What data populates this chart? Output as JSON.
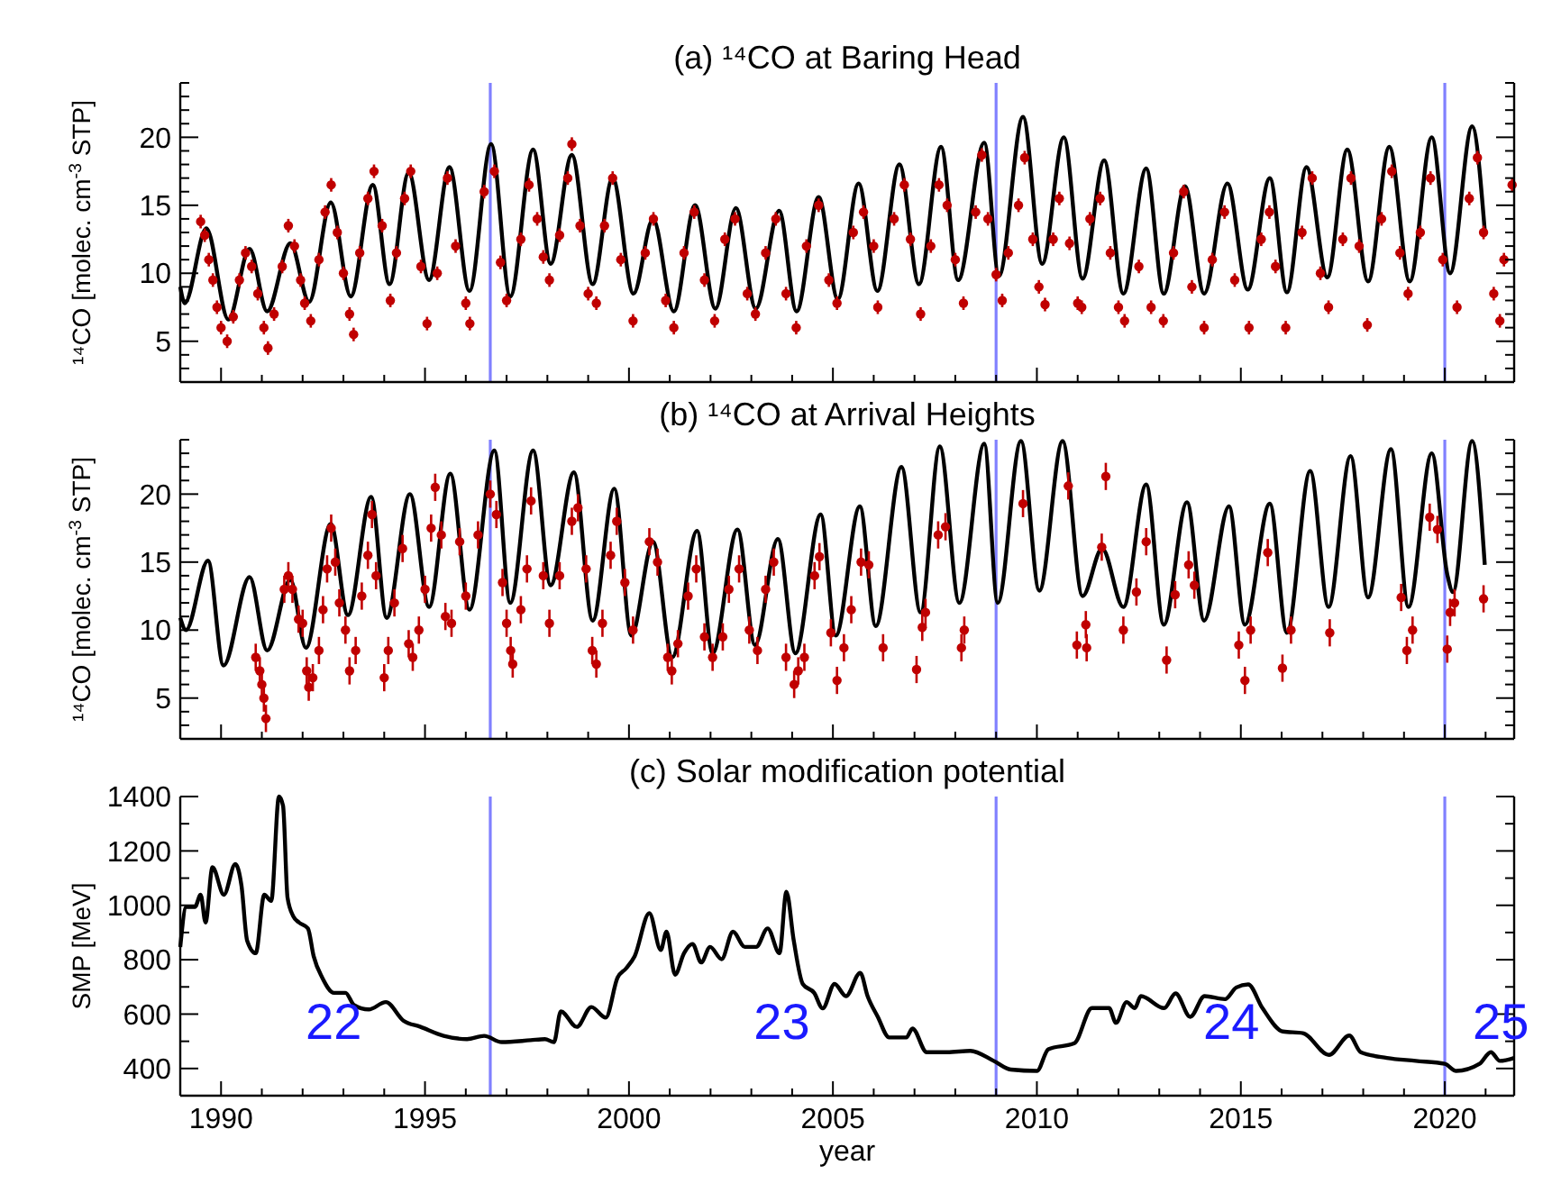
{
  "chart_data": [
    {
      "type": "scatter",
      "title": "(a) ¹⁴CO at Baring Head",
      "ylabel": "¹⁴CO [molec. cm$^{-3}$ STP]",
      "xlim": [
        1989,
        2021.7
      ],
      "ylim": [
        2,
        24
      ],
      "xticks": [
        {
          "value": 1989,
          "label": null
        },
        1990,
        {
          "value": 1991,
          "label": null
        },
        {
          "value": 1992,
          "label": null
        },
        {
          "value": 1993,
          "label": null
        },
        {
          "value": 1994,
          "label": null
        },
        1995,
        {
          "value": 1996,
          "label": null
        },
        {
          "value": 1997,
          "label": null
        },
        {
          "value": 1998,
          "label": null
        },
        {
          "value": 1999,
          "label": null
        },
        2000,
        {
          "value": 2001,
          "label": null
        },
        {
          "value": 2002,
          "label": null
        },
        {
          "value": 2003,
          "label": null
        },
        {
          "value": 2004,
          "label": null
        },
        2005,
        {
          "value": 2006,
          "label": null
        },
        {
          "value": 2007,
          "label": null
        },
        {
          "value": 2008,
          "label": null
        },
        {
          "value": 2009,
          "label": null
        },
        2010,
        {
          "value": 2011,
          "label": null
        },
        {
          "value": 2012,
          "label": null
        },
        {
          "value": 2013,
          "label": null
        },
        {
          "value": 2014,
          "label": null
        },
        2015,
        {
          "value": 2016,
          "label": null
        },
        {
          "value": 2017,
          "label": null
        },
        {
          "value": 2018,
          "label": null
        },
        {
          "value": 2019,
          "label": null
        },
        2020,
        {
          "value": 2021,
          "label": null
        }
      ],
      "yticks": [
        {
          "value": 3,
          "label": null
        },
        {
          "value": 4,
          "label": null
        },
        5,
        {
          "value": 6,
          "label": null
        },
        {
          "value": 7,
          "label": null
        },
        {
          "value": 8,
          "label": null
        },
        {
          "value": 9,
          "label": null
        },
        10,
        {
          "value": 11,
          "label": null
        },
        {
          "value": 12,
          "label": null
        },
        {
          "value": 13,
          "label": null
        },
        {
          "value": 14,
          "label": null
        },
        15,
        {
          "value": 16,
          "label": null
        },
        {
          "value": 17,
          "label": null
        },
        {
          "value": 18,
          "label": null
        },
        {
          "value": 19,
          "label": null
        },
        20,
        {
          "value": 21,
          "label": null
        },
        {
          "value": 22,
          "label": null
        },
        {
          "value": 23,
          "label": null
        },
        {
          "value": 24,
          "label": null
        }
      ],
      "tick_labels": "y",
      "line_style": "solid",
      "grid": false,
      "ref_lines": [
        {
          "axis": "x",
          "value": 1996.6,
          "color": "#8080ff"
        },
        {
          "axis": "x",
          "value": 2009.0,
          "color": "#8080ff"
        },
        {
          "axis": "x",
          "value": 2020.0,
          "color": "#8080ff"
        }
      ],
      "series": [
        {
          "marker": "circle",
          "color": "#c00000",
          "x": [
            1989.5,
            1989.6,
            1989.7,
            1989.8,
            1989.9,
            1990.0,
            1990.15,
            1990.3,
            1990.45,
            1990.6,
            1990.75,
            1990.9,
            1991.05,
            1991.15,
            1991.3,
            1991.5,
            1991.65,
            1991.8,
            1991.95,
            1992.05,
            1992.2,
            1992.4,
            1992.55,
            1992.7,
            1992.85,
            1993.0,
            1993.15,
            1993.25,
            1993.4,
            1993.6,
            1993.75,
            1993.95,
            1994.15,
            1994.3,
            1994.5,
            1994.65,
            1994.9,
            1995.05,
            1995.3,
            1995.55,
            1995.75,
            1996.0,
            1996.1,
            1996.45,
            1996.7,
            1996.85,
            1997.0,
            1997.35,
            1997.55,
            1997.75,
            1997.9,
            1998.05,
            1998.3,
            1998.5,
            1998.6,
            1998.8,
            1999.0,
            1999.2,
            1999.4,
            1999.6,
            1999.8,
            2000.1,
            2000.4,
            2000.6,
            2000.9,
            2001.1,
            2001.35,
            2001.6,
            2001.85,
            2002.1,
            2002.35,
            2002.6,
            2002.9,
            2003.1,
            2003.35,
            2003.6,
            2003.85,
            2004.1,
            2004.35,
            2004.65,
            2004.9,
            2005.1,
            2005.5,
            2005.75,
            2006.0,
            2006.1,
            2006.5,
            2006.75,
            2006.9,
            2007.15,
            2007.4,
            2007.6,
            2007.8,
            2008.0,
            2008.2,
            2008.5,
            2008.65,
            2008.8,
            2009.0,
            2009.15,
            2009.3,
            2009.55,
            2009.7,
            2009.9,
            2010.05,
            2010.2,
            2010.4,
            2010.55,
            2010.8,
            2011.0,
            2011.1,
            2011.3,
            2011.55,
            2011.8,
            2012.0,
            2012.15,
            2012.5,
            2012.8,
            2013.1,
            2013.35,
            2013.6,
            2013.8,
            2014.1,
            2014.3,
            2014.6,
            2014.85,
            2015.2,
            2015.5,
            2015.7,
            2015.85,
            2016.1,
            2016.5,
            2016.75,
            2016.95,
            2017.15,
            2017.5,
            2017.7,
            2017.9,
            2018.1,
            2018.45,
            2018.7,
            2018.9,
            2019.1,
            2019.4,
            2019.65,
            2019.95,
            2020.3,
            2020.6,
            2020.8,
            2020.95,
            2021.2,
            2021.35,
            2021.45,
            2021.65
          ],
          "values": [
            13.8,
            12.8,
            11,
            9.5,
            7.5,
            6.0,
            5.0,
            6.8,
            9.5,
            11.5,
            10.5,
            8.5,
            6.0,
            4.5,
            7.0,
            10.5,
            13.5,
            12.0,
            9.5,
            7.8,
            6.5,
            11.0,
            14.5,
            16.5,
            13.0,
            10.0,
            7.0,
            5.5,
            11.5,
            15.5,
            17.5,
            13.5,
            8.0,
            11.5,
            15.5,
            17.5,
            10.5,
            6.3,
            10.0,
            17.0,
            12.0,
            7.8,
            6.3,
            16.0,
            17.5,
            10.8,
            8.0,
            12.5,
            16.5,
            14.0,
            11.2,
            9.5,
            12.8,
            17.0,
            19.5,
            13.5,
            8.5,
            7.8,
            13.5,
            17.0,
            11.0,
            6.5,
            11.5,
            14.0,
            8.0,
            6.0,
            11.5,
            14.5,
            9.5,
            6.5,
            12.5,
            14.0,
            8.5,
            7.0,
            11.5,
            14.0,
            8.5,
            6.0,
            12.0,
            15.0,
            9.5,
            7.8,
            13.0,
            14.5,
            12,
            7.5,
            14.0,
            16.5,
            12.5,
            7.0,
            12.0,
            16.5,
            15.0,
            11,
            7.8,
            14.5,
            18.7,
            14.0,
            9.9,
            8.0,
            11.5,
            15.0,
            18.5,
            12.5,
            9.0,
            7.7,
            12.5,
            15.5,
            12.2,
            7.8,
            7.5,
            14.0,
            15.5,
            11.5,
            7.5,
            6.5,
            10.5,
            7.5,
            6.5,
            11.5,
            16.0,
            9.0,
            6.0,
            11.0,
            14.5,
            9.5,
            6.0,
            12.5,
            14.5,
            10.5,
            6.0,
            13.0,
            17.0,
            10.0,
            7.5,
            12.5,
            17.0,
            12.0,
            6.2,
            14.0,
            17.5,
            11.5,
            8.5,
            13.0,
            17.0,
            11.0,
            7.5,
            15.5,
            18.5,
            13.0,
            8.5,
            6.5,
            11.0,
            16.5
          ],
          "errors": [
            0.5,
            0.5,
            0.5,
            0.5,
            0.5,
            0.5,
            0.5,
            0.5,
            0.5,
            0.5,
            0.5,
            0.5,
            0.5,
            0.5,
            0.5,
            0.5,
            0.5,
            0.5,
            0.5,
            0.5,
            0.5,
            0.5,
            0.5,
            0.5,
            0.5,
            0.5,
            0.5,
            0.5,
            0.5,
            0.5,
            0.5,
            0.5,
            0.5,
            0.5,
            0.5,
            0.5,
            0.5,
            0.5,
            0.5,
            0.5,
            0.5,
            0.5,
            0.5,
            0.5,
            0.5,
            0.5,
            0.5,
            0.5,
            0.5,
            0.5,
            0.5,
            0.5,
            0.5,
            0.5,
            0.5,
            0.5,
            0.5,
            0.5,
            0.5,
            0.5,
            0.5,
            0.5,
            0.5,
            0.5,
            0.5,
            0.5,
            0.5,
            0.5,
            0.5,
            0.5,
            0.5,
            0.5,
            0.5,
            0.5,
            0.5,
            0.5,
            0.5,
            0.5,
            0.5,
            0.5,
            0.5,
            0.5,
            0.5,
            0.5,
            0.5,
            0.5,
            0.5,
            0.5,
            0.5,
            0.5,
            0.5,
            0.5,
            0.5,
            0.5,
            0.5,
            0.5,
            0.5,
            0.5,
            0.5,
            0.5,
            0.5,
            0.5,
            0.5,
            0.5,
            0.5,
            0.5,
            0.5,
            0.5,
            0.5,
            0.5,
            0.5,
            0.5,
            0.5,
            0.5,
            0.5,
            0.5,
            0.5,
            0.5,
            0.5,
            0.5,
            0.5,
            0.5,
            0.5,
            0.5,
            0.5,
            0.5,
            0.5,
            0.5,
            0.5,
            0.5,
            0.5,
            0.5,
            0.5,
            0.5,
            0.5,
            0.5,
            0.5,
            0.5,
            0.5,
            0.5,
            0.5,
            0.5,
            0.5,
            0.5,
            0.5,
            0.5,
            0.5,
            0.5,
            0.5,
            0.5,
            0.5,
            0.5,
            0.5,
            0.5
          ]
        },
        {
          "type": "line",
          "color": "#000000",
          "x": [
            1989.0,
            1989.11,
            1989.64,
            1990.18,
            1990.7,
            1991.13,
            1991.7,
            1992.16,
            1992.69,
            1993.18,
            1993.72,
            1994.13,
            1994.6,
            1995.1,
            1995.6,
            1996.09,
            1996.62,
            1997.09,
            1997.65,
            1998.08,
            1998.6,
            1999.11,
            1999.6,
            2000.11,
            2000.59,
            2001.1,
            2001.62,
            2002.12,
            2002.62,
            2003.11,
            2003.68,
            2004.11,
            2004.65,
            2005.12,
            2005.63,
            2006.09,
            2006.63,
            2007.11,
            2007.65,
            2008.07,
            2008.71,
            2009.07,
            2009.66,
            2010.13,
            2010.66,
            2011.12,
            2011.65,
            2012.12,
            2012.68,
            2013.11,
            2013.63,
            2014.1,
            2014.67,
            2015.17,
            2015.71,
            2016.13,
            2016.61,
            2017.12,
            2017.61,
            2018.12,
            2018.64,
            2019.14,
            2019.68,
            2020.13,
            2020.67,
            2020.98
          ],
          "values": [
            9.0,
            7.8,
            13.3,
            6.6,
            11.8,
            7.2,
            12.2,
            7.9,
            15.2,
            8.3,
            16.5,
            9.2,
            17.4,
            9.5,
            17.8,
            8.7,
            19.5,
            8.3,
            19.1,
            10.7,
            18.7,
            9.2,
            17.0,
            8.5,
            14.0,
            7.2,
            15.0,
            7.4,
            14.8,
            7.4,
            14.6,
            7.2,
            15.6,
            8.1,
            16.6,
            8.7,
            18.0,
            9.2,
            19.3,
            9.5,
            19.6,
            9.8,
            21.5,
            10.7,
            20.0,
            9.6,
            18.3,
            8.5,
            17.7,
            8.5,
            16.4,
            8.5,
            16.6,
            8.8,
            17.0,
            8.6,
            17.8,
            9.7,
            19.1,
            9.4,
            19.3,
            9.4,
            20.0,
            10.0,
            20.8,
            13.1
          ]
        }
      ]
    },
    {
      "type": "scatter",
      "title": "(b) ¹⁴CO at Arrival Heights",
      "ylabel": "¹⁴CO [molec. cm$^{-3}$ STP]",
      "xlim": [
        1989,
        2021.7
      ],
      "ylim": [
        2,
        24
      ],
      "xticks": [
        {
          "value": 1989,
          "label": null
        },
        1990,
        {
          "value": 1991,
          "label": null
        },
        {
          "value": 1992,
          "label": null
        },
        {
          "value": 1993,
          "label": null
        },
        {
          "value": 1994,
          "label": null
        },
        1995,
        {
          "value": 1996,
          "label": null
        },
        {
          "value": 1997,
          "label": null
        },
        {
          "value": 1998,
          "label": null
        },
        {
          "value": 1999,
          "label": null
        },
        2000,
        {
          "value": 2001,
          "label": null
        },
        {
          "value": 2002,
          "label": null
        },
        {
          "value": 2003,
          "label": null
        },
        {
          "value": 2004,
          "label": null
        },
        2005,
        {
          "value": 2006,
          "label": null
        },
        {
          "value": 2007,
          "label": null
        },
        {
          "value": 2008,
          "label": null
        },
        {
          "value": 2009,
          "label": null
        },
        2010,
        {
          "value": 2011,
          "label": null
        },
        {
          "value": 2012,
          "label": null
        },
        {
          "value": 2013,
          "label": null
        },
        {
          "value": 2014,
          "label": null
        },
        2015,
        {
          "value": 2016,
          "label": null
        },
        {
          "value": 2017,
          "label": null
        },
        {
          "value": 2018,
          "label": null
        },
        {
          "value": 2019,
          "label": null
        },
        2020,
        {
          "value": 2021,
          "label": null
        }
      ],
      "yticks": [
        {
          "value": 3,
          "label": null
        },
        {
          "value": 4,
          "label": null
        },
        5,
        {
          "value": 6,
          "label": null
        },
        {
          "value": 7,
          "label": null
        },
        {
          "value": 8,
          "label": null
        },
        {
          "value": 9,
          "label": null
        },
        10,
        {
          "value": 11,
          "label": null
        },
        {
          "value": 12,
          "label": null
        },
        {
          "value": 13,
          "label": null
        },
        {
          "value": 14,
          "label": null
        },
        15,
        {
          "value": 16,
          "label": null
        },
        {
          "value": 17,
          "label": null
        },
        {
          "value": 18,
          "label": null
        },
        {
          "value": 19,
          "label": null
        },
        20,
        {
          "value": 21,
          "label": null
        },
        {
          "value": 22,
          "label": null
        },
        {
          "value": 23,
          "label": null
        },
        {
          "value": 24,
          "label": null
        }
      ],
      "tick_labels": "y",
      "line_style": "solid",
      "grid": false,
      "ref_lines": [
        {
          "axis": "x",
          "value": 1996.6,
          "color": "#8080ff"
        },
        {
          "axis": "x",
          "value": 2009.0,
          "color": "#8080ff"
        },
        {
          "axis": "x",
          "value": 2020.0,
          "color": "#8080ff"
        }
      ],
      "series": [
        {
          "marker": "circle",
          "color": "#c00000",
          "x": [
            1990.85,
            1990.95,
            1991.0,
            1991.05,
            1991.1,
            1991.55,
            1991.65,
            1991.75,
            1991.9,
            1992.0,
            1992.1,
            1992.15,
            1992.25,
            1992.4,
            1992.5,
            1992.6,
            1992.7,
            1992.8,
            1992.9,
            1993.05,
            1993.15,
            1993.3,
            1993.45,
            1993.6,
            1993.7,
            1993.8,
            1994.0,
            1994.1,
            1994.25,
            1994.45,
            1994.6,
            1994.7,
            1994.85,
            1995.0,
            1995.15,
            1995.25,
            1995.4,
            1995.5,
            1995.65,
            1995.85,
            1996.0,
            1996.3,
            1996.6,
            1996.75,
            1996.9,
            1997.0,
            1997.1,
            1997.15,
            1997.35,
            1997.5,
            1997.6,
            1997.9,
            1998.05,
            1998.3,
            1998.6,
            1998.75,
            1998.95,
            1999.1,
            1999.2,
            1999.35,
            1999.55,
            1999.7,
            1999.9,
            2000.1,
            2000.5,
            2000.7,
            2000.95,
            2001.05,
            2001.2,
            2001.45,
            2001.65,
            2001.85,
            2002.05,
            2002.3,
            2002.45,
            2002.7,
            2002.95,
            2003.15,
            2003.35,
            2003.55,
            2003.85,
            2004.05,
            2004.15,
            2004.3,
            2004.55,
            2004.67,
            2004.95,
            2005.1,
            2005.27,
            2005.45,
            2005.69,
            2005.88,
            2006.23,
            2007.05,
            2007.19,
            2007.27,
            2007.58,
            2007.76,
            2008.15,
            2008.22,
            2009.66,
            2010.77,
            2010.98,
            2011.2,
            2011.22,
            2011.59,
            2011.69,
            2012.12,
            2012.44,
            2012.68,
            2013.18,
            2013.39,
            2013.72,
            2013.86,
            2014.95,
            2015.1,
            2015.24,
            2015.66,
            2016.02,
            2016.23,
            2017.18,
            2018.93,
            2019.07,
            2019.21,
            2019.63,
            2019.82,
            2020.06,
            2020.13,
            2020.24,
            2020.95
          ],
          "values": [
            8.0,
            7.0,
            6.0,
            5.0,
            3.5,
            13,
            14,
            13,
            10.8,
            10.5,
            7,
            5.8,
            6.5,
            8.5,
            11.5,
            14.5,
            17.5,
            15,
            12,
            10,
            7,
            8.5,
            12.5,
            15.5,
            18.5,
            14,
            6.5,
            8.5,
            12,
            16,
            9,
            8,
            10,
            13,
            17.5,
            20.5,
            17,
            11,
            10.5,
            16.5,
            12.5,
            17,
            20,
            18.5,
            13.5,
            10.5,
            8.5,
            7.5,
            11.5,
            14.5,
            19.5,
            14,
            10.5,
            14,
            18,
            19,
            14.5,
            8.5,
            7.5,
            10.5,
            15.5,
            18,
            13.5,
            10,
            16.5,
            15,
            8,
            7,
            9,
            12.5,
            14.5,
            9.5,
            8,
            9.5,
            13,
            14.5,
            10,
            8.5,
            13,
            15,
            8,
            6,
            7,
            8,
            14,
            15.4,
            9.8,
            6.3,
            8.7,
            11.5,
            15,
            14.8,
            8.7,
            7.1,
            10.2,
            11.3,
            17,
            17.6,
            8.7,
            10,
            19.3,
            20.6,
            8.9,
            10.4,
            8.7,
            16.1,
            21.3,
            10,
            12.8,
            16.5,
            7.8,
            12.6,
            14.8,
            13.3,
            8.9,
            6.3,
            10,
            15.7,
            7.2,
            10,
            9.8,
            12.4,
            8.5,
            10,
            18.3,
            17.4,
            8.6,
            11.3,
            12,
            12.3
          ],
          "errors": [
            1,
            1,
            1,
            1,
            1,
            1,
            1,
            1,
            1,
            1,
            1,
            1,
            1,
            1,
            1,
            1,
            1,
            1,
            1,
            1,
            1,
            1,
            1,
            1,
            1,
            1,
            1,
            1,
            1,
            1,
            1,
            1,
            1,
            1,
            1,
            1,
            1,
            1,
            1,
            1,
            1,
            1,
            1,
            1,
            1,
            1,
            1,
            1,
            1,
            1,
            1,
            1,
            1,
            1,
            1,
            1,
            1,
            1,
            1,
            1,
            1,
            1,
            1,
            1,
            1,
            1,
            1,
            1,
            1,
            1,
            1,
            1,
            1,
            1,
            1,
            1,
            1,
            1,
            1,
            1,
            1,
            1,
            1,
            1,
            1,
            1,
            1,
            1,
            1,
            1,
            1,
            1,
            1,
            1,
            1,
            1,
            1,
            1,
            1,
            1,
            1,
            1,
            1,
            1,
            1,
            1,
            1,
            1,
            1,
            1,
            1,
            1,
            1,
            1,
            1,
            1,
            1,
            1,
            1,
            1,
            1,
            1,
            1,
            1,
            1,
            1,
            1,
            1,
            1,
            1
          ]
        },
        {
          "type": "line",
          "color": "#000000",
          "x": [
            1989.0,
            1989.14,
            1989.68,
            1990.06,
            1990.7,
            1991.13,
            1991.7,
            1992.08,
            1992.69,
            1993.11,
            1993.68,
            1994.06,
            1994.63,
            1995.1,
            1995.62,
            1996.09,
            1996.7,
            1997.09,
            1997.65,
            1998.08,
            1998.65,
            1999.11,
            1999.64,
            2000.06,
            2000.59,
            2001.06,
            2001.67,
            2002.05,
            2002.66,
            2003.09,
            2003.65,
            2004.08,
            2004.7,
            2005.07,
            2005.66,
            2006.05,
            2006.68,
            2007.15,
            2007.62,
            2008.1,
            2008.71,
            2009.04,
            2009.61,
            2010.06,
            2010.63,
            2011.12,
            2011.6,
            2012.12,
            2012.68,
            2013.11,
            2013.68,
            2014.1,
            2014.71,
            2015.1,
            2015.71,
            2016.13,
            2016.7,
            2017.15,
            2017.69,
            2018.12,
            2018.68,
            2019.11,
            2019.68,
            2020.06,
            2020.2,
            2020.67,
            2020.98
          ],
          "values": [
            10.9,
            10.0,
            15.1,
            7.4,
            13.9,
            8.5,
            13.7,
            8.7,
            17.8,
            11.1,
            19.8,
            10.9,
            20.0,
            11.7,
            21.5,
            11.5,
            23.2,
            12.0,
            23.2,
            13.3,
            21.6,
            10.7,
            20.4,
            9.6,
            16.5,
            8.0,
            17.3,
            8.3,
            17.4,
            8.9,
            16.7,
            8.3,
            18.5,
            9.6,
            19.1,
            10.3,
            22.0,
            11.3,
            23.5,
            12.0,
            23.7,
            12.0,
            23.9,
            12.9,
            23.9,
            12.5,
            16.0,
            11.7,
            20.7,
            10.4,
            19.4,
            10.7,
            19.1,
            10.4,
            19.3,
            9.8,
            21.7,
            11.7,
            22.8,
            12.4,
            23.3,
            11.7,
            23.0,
            14.1,
            12.8,
            23.9,
            14.8
          ]
        }
      ]
    },
    {
      "type": "line",
      "title": "(c) Solar modification potential",
      "ylabel": "SMP [MeV]",
      "xlabel": "year",
      "xlim": [
        1989,
        2021.7
      ],
      "ylim": [
        300,
        1400
      ],
      "xticks": [
        {
          "value": 1989,
          "label": null
        },
        1990,
        {
          "value": 1991,
          "label": null
        },
        {
          "value": 1992,
          "label": null
        },
        {
          "value": 1993,
          "label": null
        },
        {
          "value": 1994,
          "label": null
        },
        1995,
        {
          "value": 1996,
          "label": null
        },
        {
          "value": 1997,
          "label": null
        },
        {
          "value": 1998,
          "label": null
        },
        {
          "value": 1999,
          "label": null
        },
        2000,
        {
          "value": 2001,
          "label": null
        },
        {
          "value": 2002,
          "label": null
        },
        {
          "value": 2003,
          "label": null
        },
        {
          "value": 2004,
          "label": null
        },
        2005,
        {
          "value": 2006,
          "label": null
        },
        {
          "value": 2007,
          "label": null
        },
        {
          "value": 2008,
          "label": null
        },
        {
          "value": 2009,
          "label": null
        },
        2010,
        {
          "value": 2011,
          "label": null
        },
        {
          "value": 2012,
          "label": null
        },
        {
          "value": 2013,
          "label": null
        },
        {
          "value": 2014,
          "label": null
        },
        2015,
        {
          "value": 2016,
          "label": null
        },
        {
          "value": 2017,
          "label": null
        },
        {
          "value": 2018,
          "label": null
        },
        {
          "value": 2019,
          "label": null
        },
        2020,
        {
          "value": 2021,
          "label": null
        }
      ],
      "yticks": [
        400,
        {
          "value": 500,
          "label": null
        },
        600,
        {
          "value": 700,
          "label": null
        },
        800,
        {
          "value": 900,
          "label": null
        },
        1000,
        {
          "value": 1100,
          "label": null
        },
        1200,
        {
          "value": 1300,
          "label": null
        },
        1400
      ],
      "line_style": "solid",
      "grid": false,
      "ref_lines": [
        {
          "axis": "x",
          "value": 1996.6,
          "color": "#8080ff"
        },
        {
          "axis": "x",
          "value": 2009.0,
          "color": "#8080ff"
        },
        {
          "axis": "x",
          "value": 2020.0,
          "color": "#8080ff"
        }
      ],
      "annotations": [
        "22",
        "23",
        "24",
        "25"
      ],
      "series": [
        {
          "color": "#000000",
          "x": [
            1989.0,
            1989.15,
            1989.36,
            1989.5,
            1989.62,
            1989.79,
            1990.07,
            1990.35,
            1990.5,
            1990.64,
            1990.85,
            1991.06,
            1991.23,
            1991.42,
            1991.52,
            1991.63,
            1991.77,
            1991.91,
            1992.13,
            1992.27,
            1992.48,
            1992.77,
            1993.05,
            1993.26,
            1993.62,
            1994.04,
            1994.47,
            1994.89,
            1995.46,
            1996.03,
            1996.45,
            1996.88,
            1997.59,
            1997.94,
            1998.16,
            1998.33,
            1998.72,
            1999.08,
            1999.43,
            1999.72,
            1999.93,
            2000.14,
            2000.5,
            2000.78,
            2000.92,
            2001.13,
            2001.35,
            2001.56,
            2001.77,
            2001.99,
            2002.27,
            2002.55,
            2002.84,
            2003.12,
            2003.4,
            2003.69,
            2003.86,
            2004.04,
            2004.26,
            2004.54,
            2004.75,
            2005.04,
            2005.32,
            2005.67,
            2005.85,
            2006.1,
            2006.38,
            2006.8,
            2006.95,
            2007.3,
            2007.8,
            2008.37,
            2008.94,
            2009.36,
            2010.0,
            2010.28,
            2010.92,
            2011.35,
            2011.77,
            2011.94,
            2012.2,
            2012.4,
            2012.55,
            2013.12,
            2013.4,
            2013.76,
            2014.11,
            2014.61,
            2014.89,
            2015.18,
            2015.53,
            2016.03,
            2016.52,
            2017.16,
            2017.66,
            2017.94,
            2018.58,
            2019.29,
            2020.0,
            2020.28,
            2020.85,
            2021.13,
            2021.35,
            2021.7
          ],
          "values": [
            847,
            994,
            994,
            1039,
            937,
            1140,
            1039,
            1152,
            1073,
            870,
            824,
            1039,
            1016,
            1400,
            1366,
            1028,
            960,
            937,
            915,
            813,
            734,
            678,
            678,
            633,
            617,
            644,
            576,
            553,
            520,
            508,
            520,
            497,
            504,
            508,
            497,
            610,
            553,
            626,
            587,
            734,
            768,
            813,
            971,
            836,
            903,
            745,
            824,
            858,
            790,
            847,
            802,
            903,
            847,
            847,
            915,
            824,
            1050,
            870,
            711,
            678,
            621,
            711,
            666,
            752,
            666,
            590,
            514,
            514,
            547,
            460,
            460,
            465,
            428,
            396,
            391,
            471,
            493,
            622,
            622,
            568,
            644,
            622,
            666,
            622,
            676,
            590,
            666,
            655,
            698,
            709,
            622,
            536,
            530,
            450,
            521,
            460,
            439,
            428,
            417,
            391,
            417,
            460,
            428,
            439
          ]
        }
      ]
    }
  ]
}
